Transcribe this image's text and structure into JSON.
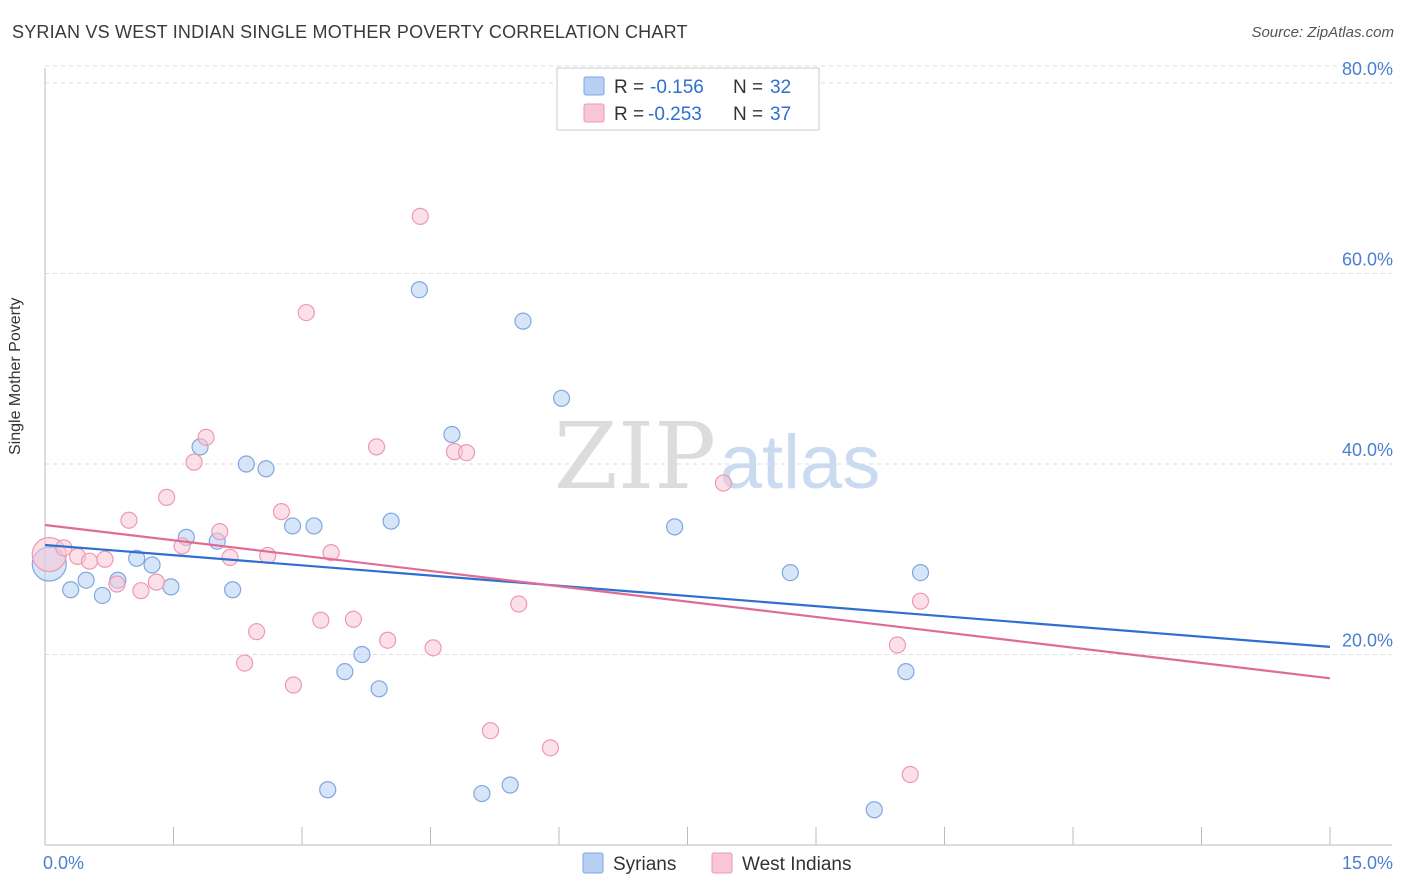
{
  "header": {
    "title": "SYRIAN VS WEST INDIAN SINGLE MOTHER POVERTY CORRELATION CHART",
    "source": "Source: ZipAtlas.com"
  },
  "watermark": {
    "zip": "ZIP",
    "atlas": "atlas"
  },
  "colors": {
    "syrians_fill": "#b7d0f3",
    "syrians_stroke": "#7fa7e0",
    "syrians_line": "#2e6fd0",
    "west_indians_fill": "#f8c6d6",
    "west_indians_stroke": "#ee99b4",
    "west_indians_line": "#e06c96",
    "tick_label": "#4a7fcf",
    "grid": "#dddddd"
  },
  "chart_data": {
    "type": "scatter",
    "title": "SYRIAN VS WEST INDIAN SINGLE MOTHER POVERTY CORRELATION CHART",
    "xlabel": "",
    "ylabel": "Single Mother Poverty",
    "xlim": [
      0,
      15
    ],
    "ylim": [
      0,
      82
    ],
    "x_tick_labels": [
      "0.0%",
      "15.0%"
    ],
    "y_ticks": [
      20,
      40,
      60,
      80
    ],
    "y_tick_labels": [
      "20.0%",
      "40.0%",
      "60.0%",
      "80.0%"
    ],
    "grid": true,
    "legend_position": "top-center",
    "legend": [
      {
        "r_label": "R = ",
        "r": "-0.156",
        "n_label": "N = ",
        "n": "32"
      },
      {
        "r_label": "R = ",
        "r": "-0.253",
        "n_label": "N = ",
        "n": "37"
      }
    ],
    "bottom_legend": [
      "Syrians",
      "West Indians"
    ],
    "series": [
      {
        "name": "Syrians",
        "trend": {
          "x": [
            0,
            15
          ],
          "y": [
            31.5,
            20.8
          ]
        },
        "points": [
          {
            "x": 0.05,
            "y": 29.5,
            "big": true
          },
          {
            "x": 0.3,
            "y": 26.8
          },
          {
            "x": 0.48,
            "y": 27.8
          },
          {
            "x": 0.67,
            "y": 26.2
          },
          {
            "x": 0.85,
            "y": 27.8
          },
          {
            "x": 1.07,
            "y": 30.1
          },
          {
            "x": 1.25,
            "y": 29.4
          },
          {
            "x": 1.47,
            "y": 27.1
          },
          {
            "x": 1.65,
            "y": 32.3
          },
          {
            "x": 1.81,
            "y": 41.8
          },
          {
            "x": 2.01,
            "y": 31.9
          },
          {
            "x": 2.19,
            "y": 26.8
          },
          {
            "x": 2.35,
            "y": 40.0
          },
          {
            "x": 2.58,
            "y": 39.5
          },
          {
            "x": 2.89,
            "y": 33.5
          },
          {
            "x": 3.14,
            "y": 33.5
          },
          {
            "x": 3.3,
            "y": 5.8
          },
          {
            "x": 3.5,
            "y": 18.2
          },
          {
            "x": 3.7,
            "y": 20.0
          },
          {
            "x": 3.9,
            "y": 16.4
          },
          {
            "x": 4.04,
            "y": 34.0
          },
          {
            "x": 4.37,
            "y": 58.3
          },
          {
            "x": 4.75,
            "y": 43.1
          },
          {
            "x": 5.1,
            "y": 5.4
          },
          {
            "x": 5.43,
            "y": 6.3
          },
          {
            "x": 5.58,
            "y": 55.0
          },
          {
            "x": 6.03,
            "y": 46.9
          },
          {
            "x": 7.35,
            "y": 33.4
          },
          {
            "x": 8.7,
            "y": 28.6
          },
          {
            "x": 9.68,
            "y": 3.7
          },
          {
            "x": 10.05,
            "y": 18.2
          },
          {
            "x": 10.22,
            "y": 28.6
          }
        ]
      },
      {
        "name": "West Indians",
        "trend": {
          "x": [
            0,
            15
          ],
          "y": [
            33.6,
            17.5
          ]
        },
        "points": [
          {
            "x": 0.05,
            "y": 30.5,
            "big": true
          },
          {
            "x": 0.22,
            "y": 31.2
          },
          {
            "x": 0.38,
            "y": 30.3
          },
          {
            "x": 0.52,
            "y": 29.8
          },
          {
            "x": 0.7,
            "y": 30.0
          },
          {
            "x": 0.84,
            "y": 27.4
          },
          {
            "x": 0.98,
            "y": 34.1
          },
          {
            "x": 1.12,
            "y": 26.7
          },
          {
            "x": 1.3,
            "y": 27.6
          },
          {
            "x": 1.42,
            "y": 36.5
          },
          {
            "x": 1.6,
            "y": 31.4
          },
          {
            "x": 1.74,
            "y": 40.2
          },
          {
            "x": 1.88,
            "y": 42.8
          },
          {
            "x": 2.04,
            "y": 32.9
          },
          {
            "x": 2.16,
            "y": 30.2
          },
          {
            "x": 2.33,
            "y": 19.1
          },
          {
            "x": 2.47,
            "y": 22.4
          },
          {
            "x": 2.6,
            "y": 30.4
          },
          {
            "x": 2.76,
            "y": 35.0
          },
          {
            "x": 2.9,
            "y": 16.8
          },
          {
            "x": 3.05,
            "y": 55.9
          },
          {
            "x": 3.22,
            "y": 23.6
          },
          {
            "x": 3.34,
            "y": 30.7
          },
          {
            "x": 3.6,
            "y": 23.7
          },
          {
            "x": 3.87,
            "y": 41.8
          },
          {
            "x": 4.0,
            "y": 21.5
          },
          {
            "x": 4.38,
            "y": 66.0
          },
          {
            "x": 4.53,
            "y": 20.7
          },
          {
            "x": 4.78,
            "y": 41.3
          },
          {
            "x": 4.92,
            "y": 41.2
          },
          {
            "x": 5.2,
            "y": 12.0
          },
          {
            "x": 5.53,
            "y": 25.3
          },
          {
            "x": 5.9,
            "y": 10.2
          },
          {
            "x": 7.92,
            "y": 38.0
          },
          {
            "x": 9.95,
            "y": 21.0
          },
          {
            "x": 10.1,
            "y": 7.4
          },
          {
            "x": 10.22,
            "y": 25.6
          }
        ]
      }
    ]
  }
}
